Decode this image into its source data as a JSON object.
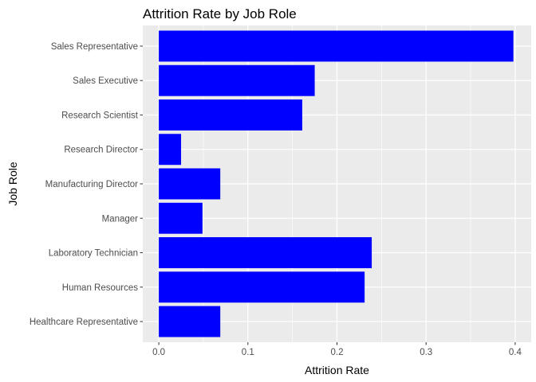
{
  "chart_data": {
    "type": "bar",
    "orientation": "horizontal",
    "title": "Attrition Rate by Job Role",
    "xlabel": "Attrition Rate",
    "ylabel": "Job Role",
    "categories": [
      "Healthcare Representative",
      "Human Resources",
      "Laboratory Technician",
      "Manager",
      "Manufacturing Director",
      "Research Director",
      "Research Scientist",
      "Sales Executive",
      "Sales Representative"
    ],
    "values": [
      0.069,
      0.231,
      0.239,
      0.049,
      0.069,
      0.025,
      0.161,
      0.175,
      0.398
    ],
    "xlim": [
      -0.018,
      0.418
    ],
    "xticks": [
      0.0,
      0.1,
      0.2,
      0.3,
      0.4
    ],
    "xtick_labels": [
      "0.0",
      "0.1",
      "0.2",
      "0.3",
      "0.4"
    ],
    "bar_color": "#0000FF",
    "panel_background": "#EBEBEB",
    "grid": true,
    "legend": "none"
  }
}
